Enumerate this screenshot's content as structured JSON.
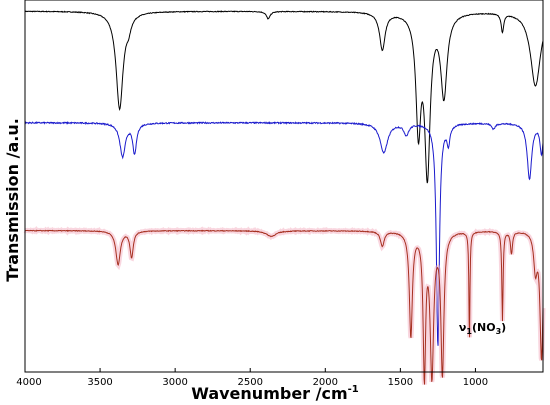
{
  "chart_data": {
    "type": "line",
    "title": "",
    "xlabel": "Wavenumber /cm",
    "xlabel_sup": "-1",
    "ylabel": "Transmission /a.u.",
    "xlim": [
      4000,
      550
    ],
    "x_reversed": true,
    "y_units": "stacked offset transmission (arbitrary units)",
    "ylim": [
      0,
      100
    ],
    "x_ticks": [
      4000,
      3500,
      3000,
      2500,
      2000,
      1500,
      1000
    ],
    "x_tick_labels": [
      "4000",
      "3500",
      "3000",
      "2500",
      "2000",
      "1500",
      "1000"
    ],
    "grid": false,
    "legend": "none",
    "annotations": [
      {
        "text_main": "ν",
        "text_sub": "1",
        "text_rest": "(NO",
        "text_sub2": "3",
        "text_end": ")",
        "x": 1110,
        "y": 11
      }
    ],
    "series": [
      {
        "color": "#000000",
        "baseline": 97,
        "peaks": [
          [
            3370,
            26,
            28
          ],
          [
            3310,
            3,
            20
          ],
          [
            2380,
            2,
            15
          ],
          [
            1620,
            10,
            22
          ],
          [
            1380,
            30,
            20
          ],
          [
            1320,
            42,
            22
          ],
          [
            1210,
            22,
            25
          ],
          [
            820,
            5,
            10
          ],
          [
            600,
            20,
            40
          ]
        ]
      },
      {
        "color": "#1a1acc",
        "baseline": 67,
        "peaks": [
          [
            3350,
            9,
            22
          ],
          [
            3270,
            8,
            15
          ],
          [
            1610,
            8,
            30
          ],
          [
            1460,
            3,
            20
          ],
          [
            1250,
            60,
            12
          ],
          [
            1180,
            5,
            12
          ],
          [
            880,
            1.5,
            15
          ],
          [
            640,
            15,
            18
          ],
          [
            560,
            8,
            12
          ]
        ]
      },
      {
        "color": "#a63020",
        "baseline": 38,
        "peaks": [
          [
            3380,
            9,
            18
          ],
          [
            3290,
            7,
            13
          ],
          [
            2360,
            1.5,
            40
          ],
          [
            1620,
            4,
            15
          ],
          [
            1430,
            28,
            12
          ],
          [
            1340,
            38,
            10
          ],
          [
            1290,
            38,
            14
          ],
          [
            1220,
            38,
            12
          ],
          [
            1040,
            30,
            4
          ],
          [
            820,
            24,
            5
          ],
          [
            760,
            6,
            8
          ],
          [
            600,
            10,
            14
          ],
          [
            560,
            34,
            12
          ]
        ]
      }
    ]
  }
}
